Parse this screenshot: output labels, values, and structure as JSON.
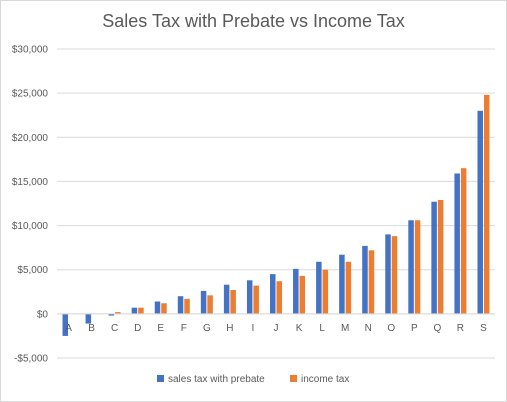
{
  "chart_data": {
    "type": "bar",
    "title": "Sales Tax with Prebate vs Income Tax",
    "xlabel": "",
    "ylabel": "",
    "categories": [
      "A",
      "B",
      "C",
      "D",
      "E",
      "F",
      "G",
      "H",
      "I",
      "J",
      "K",
      "L",
      "M",
      "N",
      "O",
      "P",
      "Q",
      "R",
      "S"
    ],
    "series": [
      {
        "name": "sales tax with prebate",
        "color": "#4472c4",
        "values": [
          -2500,
          -1100,
          -200,
          700,
          1400,
          2000,
          2600,
          3300,
          3800,
          4500,
          5100,
          5900,
          6700,
          7700,
          9000,
          10600,
          12700,
          15900,
          23000
        ]
      },
      {
        "name": "income tax",
        "color": "#ed7d31",
        "values": [
          0,
          0,
          200,
          700,
          1200,
          1700,
          2100,
          2700,
          3200,
          3700,
          4300,
          5000,
          5900,
          7200,
          8800,
          10600,
          12900,
          16500,
          24800
        ]
      }
    ],
    "ylim": [
      -5000,
      30000
    ],
    "yticks": [
      -5000,
      0,
      5000,
      10000,
      15000,
      20000,
      25000,
      30000
    ],
    "ytick_labels": [
      "-$5,000",
      "$0",
      "$5,000",
      "$10,000",
      "$15,000",
      "$20,000",
      "$25,000",
      "$30,000"
    ],
    "grid": true,
    "legend_position": "bottom"
  }
}
